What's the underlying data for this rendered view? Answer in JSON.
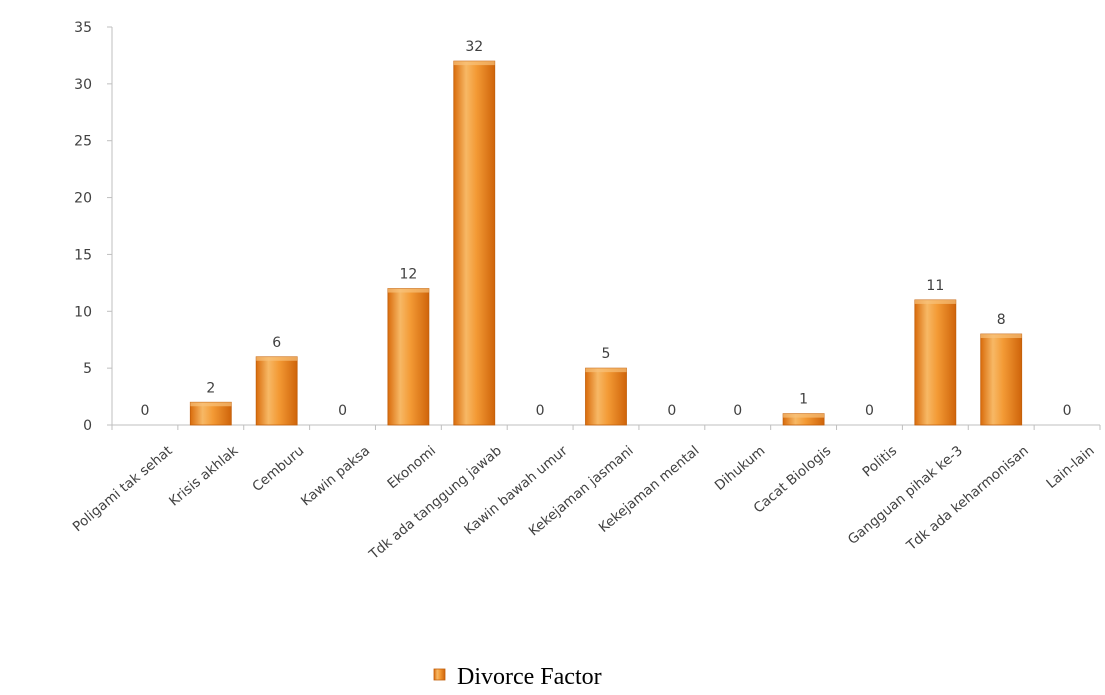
{
  "chart_data": {
    "type": "bar",
    "categories": [
      "Poligami tak sehat",
      "Krisis akhlak",
      "Cemburu",
      "Kawin paksa",
      "Ekonomi",
      "Tdk ada tanggung jawab",
      "Kawin bawah umur",
      "Kekejaman jasmani",
      "Kekejaman mental",
      "Dihukum",
      "Cacat Biologis",
      "Politis",
      "Gangguan pihak ke-3",
      "Tdk ada keharmonisan",
      "Lain-lain"
    ],
    "series": [
      {
        "name": "Divorce Factor",
        "values": [
          0,
          2,
          6,
          0,
          12,
          32,
          0,
          5,
          0,
          0,
          1,
          0,
          11,
          8,
          0
        ]
      }
    ],
    "data_labels": [
      "0",
      "2",
      "6",
      "0",
      "12",
      "32",
      "0",
      "5",
      "0",
      "0",
      "1",
      "0",
      "11",
      "8",
      "0"
    ],
    "yticks": [
      "0",
      "5",
      "10",
      "15",
      "20",
      "25",
      "30",
      "35"
    ],
    "ylim": [
      0,
      35
    ],
    "grid": false,
    "legend_position": "bottom",
    "legend_label": "Divorce Factor",
    "colors": {
      "bar_light": "#f8c27a",
      "bar_mid": "#f39a35",
      "bar_dark": "#d96c0c",
      "bar_edge": "#c25f0a",
      "axis": "#bfbfbf",
      "text": "#404040"
    }
  }
}
